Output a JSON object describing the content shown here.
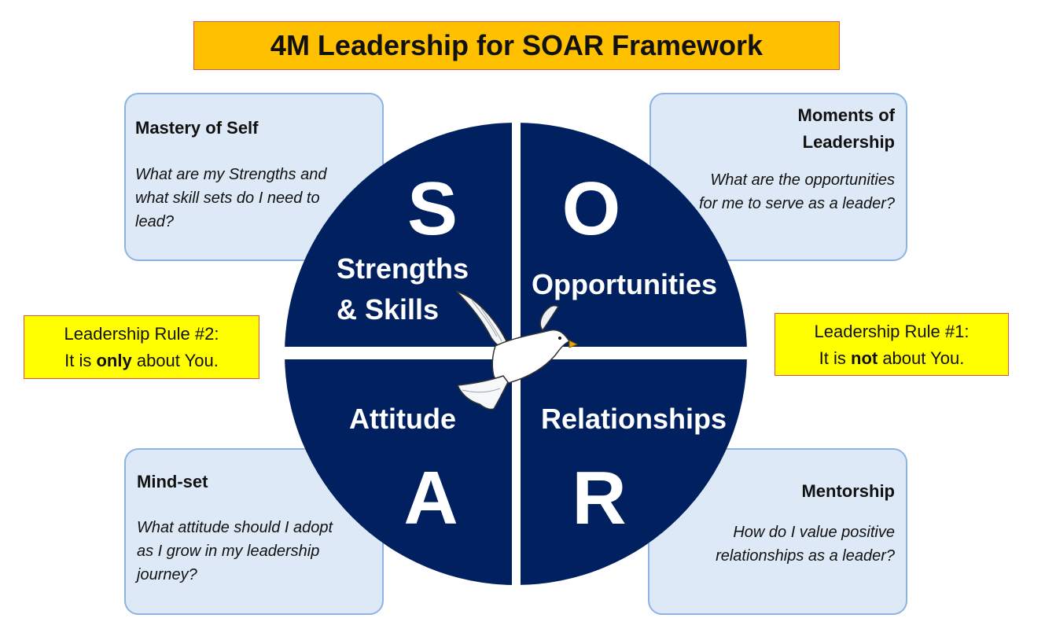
{
  "title": "4M Leadership for SOAR Framework",
  "cards": {
    "mastery": {
      "heading": "Mastery of Self",
      "question": "What are my Strengths and what skill sets do I need to lead?"
    },
    "moments": {
      "heading_line1": "Moments of",
      "heading_line2": "Leadership",
      "question": "What are the opportunities for me to serve as a leader?"
    },
    "mindset": {
      "heading": "Mind-set",
      "question": "What attitude should I adopt as I grow in my leadership journey?"
    },
    "mentorship": {
      "heading": "Mentorship",
      "question": "How do I value positive relationships as a leader?"
    }
  },
  "rules": {
    "rule2": {
      "line1": "Leadership Rule #2:",
      "pre": "It is ",
      "emph": "only",
      "post": " about You."
    },
    "rule1": {
      "line1": "Leadership Rule #1:",
      "pre": "It is ",
      "emph": "not",
      "post": " about You."
    }
  },
  "wheel": {
    "quadrants": {
      "s": {
        "letter": "S",
        "label_line1": "Strengths",
        "label_line2": "& Skills"
      },
      "o": {
        "letter": "O",
        "label": "Opportunities"
      },
      "a": {
        "letter": "A",
        "label": "Attitude"
      },
      "r": {
        "letter": "R",
        "label": "Relationships"
      }
    },
    "fill_color": "#002060",
    "divider_color": "#ffffff"
  },
  "colors": {
    "title_bg": "#ffc000",
    "rule_bg": "#ffff00",
    "card_bg": "#dde9f6",
    "card_border": "#8db3e2"
  },
  "icons": {
    "center": "dove-icon"
  }
}
